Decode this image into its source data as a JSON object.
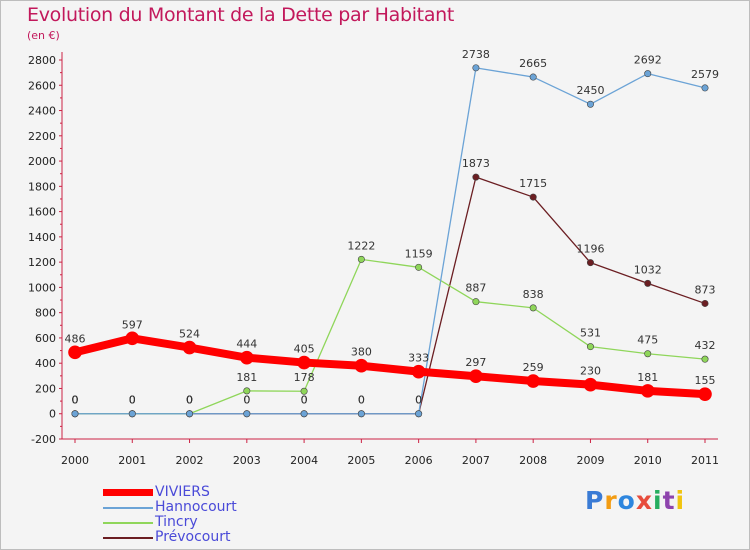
{
  "title": "Evolution du Montant de la Dette par Habitant",
  "unit": "(en €)",
  "logo": "Proxiti",
  "chart_data": {
    "type": "line",
    "title": "Evolution du Montant de la Dette par Habitant",
    "ylabel": "(en €)",
    "xlabel": "",
    "ylim": [
      -200,
      2800
    ],
    "grid": false,
    "legend": "bottom-left",
    "x": [
      "2000",
      "2001",
      "2002",
      "2003",
      "2004",
      "2005",
      "2006",
      "2007",
      "2008",
      "2009",
      "2010",
      "2011"
    ],
    "yticks": [
      -200,
      0,
      200,
      400,
      600,
      800,
      1000,
      1200,
      1400,
      1600,
      1800,
      2000,
      2200,
      2400,
      2600,
      2800
    ],
    "series": [
      {
        "name": "Prévocourt",
        "color": "#6b1e22",
        "width": 1.3,
        "values": [
          0,
          0,
          0,
          0,
          0,
          0,
          0,
          1873,
          1715,
          1196,
          1032,
          873
        ]
      },
      {
        "name": "Tincry",
        "color": "#8fd65a",
        "width": 1.3,
        "values": [
          0,
          0,
          0,
          181,
          178,
          1222,
          1159,
          887,
          838,
          531,
          475,
          432
        ]
      },
      {
        "name": "Hannocourt",
        "color": "#6ba3d6",
        "width": 1.3,
        "values": [
          0,
          0,
          0,
          0,
          0,
          0,
          0,
          2738,
          2665,
          2450,
          2692,
          2579
        ]
      },
      {
        "name": "VIVIERS",
        "color": "#ff0000",
        "width": 8,
        "values": [
          486,
          597,
          524,
          444,
          405,
          380,
          333,
          297,
          259,
          230,
          181,
          155
        ]
      }
    ]
  },
  "legend_items": [
    {
      "label": "VIVIERS",
      "color": "#ff0000"
    },
    {
      "label": "Hannocourt",
      "color": "#6ba3d6"
    },
    {
      "label": "Tincry",
      "color": "#8fd65a"
    },
    {
      "label": "Prévocourt",
      "color": "#6b1e22"
    }
  ]
}
